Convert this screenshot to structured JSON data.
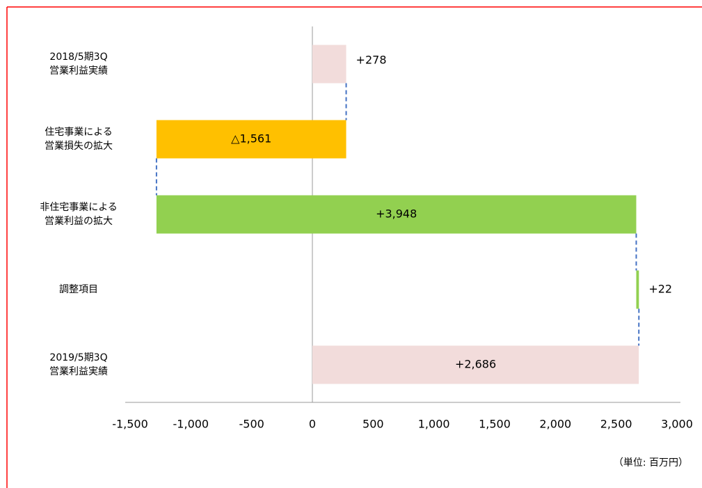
{
  "chart_data": {
    "type": "waterfall",
    "categories": [
      "2018/5期3Q\n営業利益実績",
      "住宅事業による\n営業損失の拡大",
      "非住宅事業による\n営業利益の拡大",
      "調整項目",
      "2019/5期3Q\n営業利益実績"
    ],
    "values": [
      278,
      -1561,
      3948,
      22,
      2686
    ],
    "value_labels": [
      "+278",
      "△1,561",
      "+3,948",
      "+22",
      "+2,686"
    ],
    "totals": [
      true,
      false,
      false,
      false,
      true
    ],
    "colors": [
      "#f2dcdb",
      "#ffc000",
      "#92d050",
      "#92d050",
      "#f2dcdb"
    ],
    "connector_color": "#4472c4",
    "xlim": [
      -1500,
      3000
    ],
    "xticks": [
      {
        "value": -1500,
        "label": "-1,500"
      },
      {
        "value": -1000,
        "label": "-1,000"
      },
      -500,
      0,
      500,
      {
        "value": 1000,
        "label": "1,000"
      },
      {
        "value": 1500,
        "label": "1,500"
      },
      {
        "value": 2000,
        "label": "2,000"
      },
      {
        "value": 2500,
        "label": "2,500"
      },
      {
        "value": 3000,
        "label": "3,000"
      }
    ],
    "negative_tick_color": "#ff0000",
    "unit_note": "（単位: 百万円）"
  }
}
